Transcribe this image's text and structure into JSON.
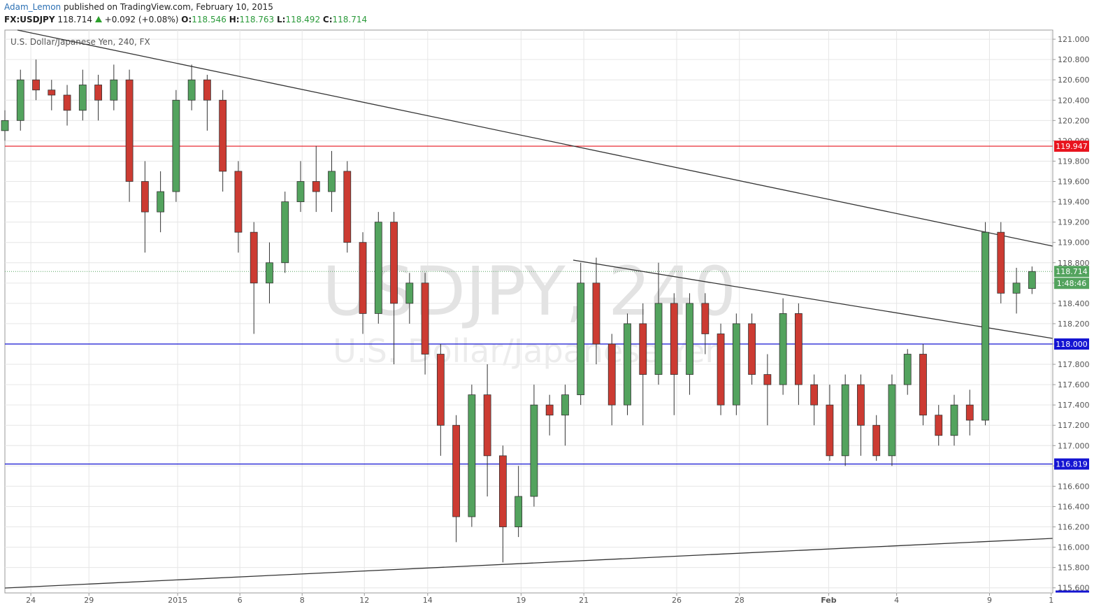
{
  "header": {
    "author": "Adam_Lemon",
    "published": "published on TradingView.com, February 10, 2015",
    "symbol": "FX:USDJPY",
    "last": "118.714",
    "change": "+0.092 (+0.08%)",
    "open_label": "O:",
    "open": "118.546",
    "high_label": "H:",
    "high": "118.763",
    "low_label": "L:",
    "low": "118.492",
    "close_label": "C:",
    "close": "118.714"
  },
  "chart_data": {
    "type": "candlestick",
    "legend": "U.S. Dollar/Japanese Yen, 240, FX",
    "watermark": "USDJPY, 240",
    "watermark_sub": "U.S. Dollar/Japanese Yen",
    "up_color": "#53a35e",
    "down_color": "#cc3b32",
    "grid": true,
    "xlim": [
      0,
      202
    ],
    "ylim": [
      115.55,
      121.09
    ],
    "xticks": [
      {
        "value": 5,
        "label": "24"
      },
      {
        "value": 16.2,
        "label": "29"
      },
      {
        "value": 33.3,
        "label": "2015"
      },
      {
        "value": 45.3,
        "label": "6"
      },
      {
        "value": 57.3,
        "label": "8"
      },
      {
        "value": 69.3,
        "label": "12"
      },
      {
        "value": 81.5,
        "label": "14"
      },
      {
        "value": 99.5,
        "label": "19"
      },
      {
        "value": 111.6,
        "label": "21"
      },
      {
        "value": 129.5,
        "label": "26"
      },
      {
        "value": 141.6,
        "label": "28"
      },
      {
        "value": 158.8,
        "label": "Feb"
      },
      {
        "value": 171.9,
        "label": "4"
      },
      {
        "value": 189.8,
        "label": "9"
      },
      {
        "value": 201.7,
        "label": "1"
      }
    ],
    "yticks": [
      {
        "value": 115.6,
        "label": "115.600"
      },
      {
        "value": 115.8,
        "label": "115.800"
      },
      {
        "value": 116,
        "label": "116.000"
      },
      {
        "value": 116.2,
        "label": "116.200"
      },
      {
        "value": 116.4,
        "label": "116.400"
      },
      {
        "value": 116.6,
        "label": "116.600"
      },
      {
        "value": 116.8,
        "label": "116.800"
      },
      {
        "value": 117,
        "label": "117.000"
      },
      {
        "value": 117.2,
        "label": "117.200"
      },
      {
        "value": 117.4,
        "label": "117.400"
      },
      {
        "value": 117.6,
        "label": "117.600"
      },
      {
        "value": 117.8,
        "label": "117.800"
      },
      {
        "value": 118,
        "label": "118.000"
      },
      {
        "value": 118.2,
        "label": "118.200"
      },
      {
        "value": 118.4,
        "label": "118.400"
      },
      {
        "value": 118.6,
        "label": "118.600"
      },
      {
        "value": 118.8,
        "label": "118.800"
      },
      {
        "value": 119,
        "label": "119.000"
      },
      {
        "value": 119.2,
        "label": "119.200"
      },
      {
        "value": 119.4,
        "label": "119.400"
      },
      {
        "value": 119.6,
        "label": "119.600"
      },
      {
        "value": 119.8,
        "label": "119.800"
      },
      {
        "value": 120,
        "label": "120.000"
      },
      {
        "value": 120.2,
        "label": "120.200"
      },
      {
        "value": 120.4,
        "label": "120.400"
      },
      {
        "value": 120.6,
        "label": "120.600"
      },
      {
        "value": 120.8,
        "label": "120.800"
      },
      {
        "value": 121,
        "label": "121.000"
      }
    ],
    "x": [
      0,
      3,
      6,
      9,
      12,
      15,
      18,
      21,
      24,
      27,
      30,
      33,
      36,
      39,
      42,
      45,
      48,
      51,
      54,
      57,
      60,
      63,
      66,
      69,
      72,
      75,
      78,
      81,
      84,
      87,
      90,
      93,
      96,
      99,
      102,
      105,
      108,
      111,
      114,
      117,
      120,
      123,
      126,
      129,
      132,
      135,
      138,
      141,
      144,
      147,
      150,
      153,
      156,
      159,
      162,
      165,
      168,
      171,
      174,
      177,
      180,
      183,
      186,
      189,
      192,
      195,
      198
    ],
    "open": [
      120.1,
      120.2,
      120.6,
      120.5,
      120.45,
      120.3,
      120.55,
      120.4,
      120.6,
      119.6,
      119.3,
      119.5,
      120.4,
      120.6,
      120.4,
      119.7,
      119.1,
      118.6,
      118.8,
      119.4,
      119.6,
      119.5,
      119.7,
      119.0,
      118.3,
      119.2,
      118.4,
      118.6,
      117.9,
      117.2,
      116.3,
      117.5,
      116.9,
      116.2,
      116.5,
      117.4,
      117.3,
      117.5,
      118.6,
      118.0,
      117.4,
      118.2,
      117.7,
      118.4,
      117.7,
      118.4,
      118.1,
      117.4,
      118.2,
      117.7,
      117.6,
      118.3,
      117.6,
      117.4,
      116.9,
      117.6,
      117.2,
      116.9,
      117.6,
      117.9,
      117.3,
      117.1,
      117.4,
      117.25,
      119.1,
      118.5,
      118.546
    ],
    "high": [
      120.3,
      120.7,
      120.8,
      120.6,
      120.55,
      120.7,
      120.65,
      120.75,
      120.7,
      119.8,
      119.7,
      120.5,
      120.75,
      120.65,
      120.5,
      119.8,
      119.2,
      119.0,
      119.5,
      119.8,
      119.95,
      119.9,
      119.8,
      119.1,
      119.3,
      119.3,
      118.7,
      118.7,
      118.0,
      117.3,
      117.6,
      117.8,
      117.0,
      116.8,
      117.6,
      117.5,
      117.6,
      118.8,
      118.85,
      118.1,
      118.3,
      118.4,
      118.8,
      118.5,
      118.5,
      118.5,
      118.2,
      118.3,
      118.3,
      117.9,
      118.45,
      118.4,
      117.7,
      117.6,
      117.7,
      117.7,
      117.3,
      117.7,
      117.95,
      118.0,
      117.4,
      117.5,
      117.55,
      119.2,
      119.2,
      118.75,
      118.763
    ],
    "low": [
      120.0,
      120.1,
      120.4,
      120.3,
      120.15,
      120.2,
      120.2,
      120.3,
      119.4,
      118.9,
      119.1,
      119.4,
      120.3,
      120.1,
      119.5,
      118.9,
      118.1,
      118.4,
      118.7,
      119.3,
      119.3,
      119.3,
      118.9,
      118.1,
      118.2,
      117.8,
      118.2,
      117.7,
      116.9,
      116.05,
      116.2,
      116.5,
      115.85,
      116.1,
      116.4,
      117.1,
      117.0,
      117.4,
      117.8,
      117.2,
      117.3,
      117.2,
      117.6,
      117.3,
      117.5,
      117.9,
      117.3,
      117.3,
      117.6,
      117.2,
      117.5,
      117.4,
      117.2,
      116.85,
      116.8,
      116.9,
      116.85,
      116.8,
      117.5,
      117.2,
      117.0,
      117.0,
      117.1,
      117.2,
      118.4,
      118.3,
      118.492
    ],
    "close": [
      120.2,
      120.6,
      120.5,
      120.45,
      120.3,
      120.55,
      120.4,
      120.6,
      119.6,
      119.3,
      119.5,
      120.4,
      120.6,
      120.4,
      119.7,
      119.1,
      118.6,
      118.8,
      119.4,
      119.6,
      119.5,
      119.7,
      119.0,
      118.3,
      119.2,
      118.4,
      118.6,
      117.9,
      117.2,
      116.3,
      117.5,
      116.9,
      116.2,
      116.5,
      117.4,
      117.3,
      117.5,
      118.6,
      118.0,
      117.4,
      118.2,
      117.7,
      118.4,
      117.7,
      118.4,
      118.1,
      117.4,
      118.2,
      117.7,
      117.6,
      118.3,
      117.6,
      117.4,
      116.9,
      117.6,
      117.2,
      116.9,
      117.6,
      117.9,
      117.3,
      117.1,
      117.4,
      117.25,
      119.1,
      118.5,
      118.6,
      118.714
    ],
    "levels": [
      {
        "value": 119.947,
        "color": "#e8141e"
      },
      {
        "value": 118,
        "label": "118.000",
        "color": "#1414d2"
      },
      {
        "value": 116.819,
        "color": "#1414d2"
      }
    ],
    "last_price": {
      "value": 118.714,
      "color": "#53a35e",
      "countdown": "1:48:46"
    }
  }
}
